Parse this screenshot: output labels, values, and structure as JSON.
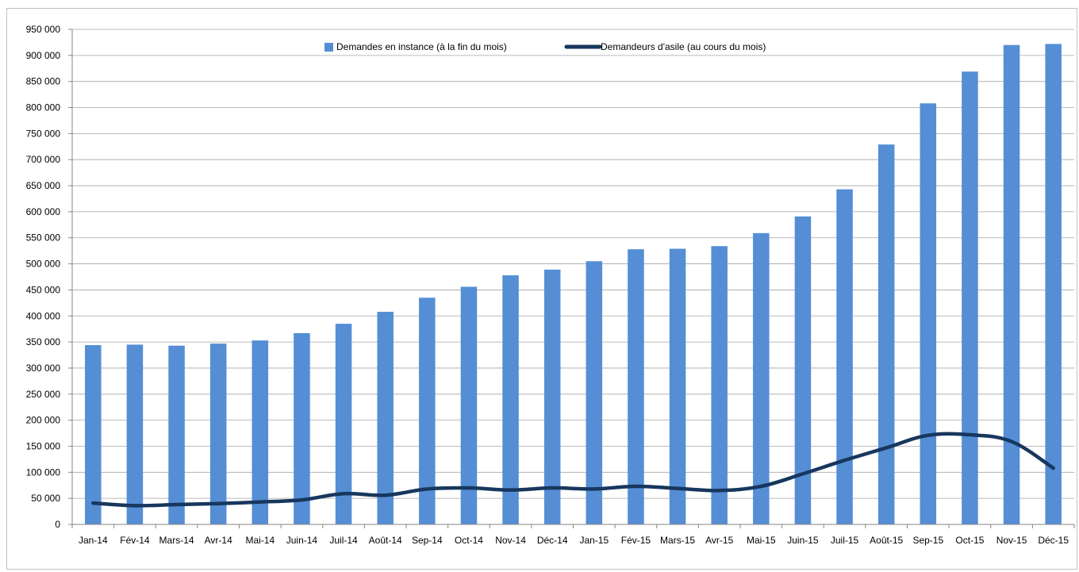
{
  "chart_data": {
    "type": "bar",
    "title": "",
    "xlabel": "",
    "ylabel": "",
    "ylim": [
      0,
      950000
    ],
    "grid": true,
    "legend_position": "top",
    "categories": [
      "Jan-14",
      "Fév-14",
      "Mars-14",
      "Avr-14",
      "Mai-14",
      "Juin-14",
      "Juil-14",
      "Août-14",
      "Sep-14",
      "Oct-14",
      "Nov-14",
      "Déc-14",
      "Jan-15",
      "Fév-15",
      "Mars-15",
      "Avr-15",
      "Mai-15",
      "Juin-15",
      "Juil-15",
      "Août-15",
      "Sep-15",
      "Oct-15",
      "Nov-15",
      "Déc-15"
    ],
    "y_ticks": [
      "0",
      "50 000",
      "100 000",
      "150 000",
      "200 000",
      "250 000",
      "300 000",
      "350 000",
      "400 000",
      "450 000",
      "500 000",
      "550 000",
      "600 000",
      "650 000",
      "700 000",
      "750 000",
      "800 000",
      "850 000",
      "900 000",
      "950 000"
    ],
    "series": [
      {
        "name": "Demandes en instance (à la fin du mois)",
        "type": "bar",
        "color": "#558ed5",
        "values": [
          344000,
          345000,
          343000,
          347000,
          353000,
          367000,
          385000,
          408000,
          435000,
          456000,
          478000,
          489000,
          505000,
          528000,
          529000,
          534000,
          559000,
          591000,
          643000,
          729000,
          808000,
          869000,
          920000,
          922000
        ]
      },
      {
        "name": "Demandeurs d'asile (au cours du mois)",
        "type": "line",
        "color": "#17375e",
        "values": [
          41000,
          36000,
          38000,
          40000,
          43000,
          47000,
          59000,
          56000,
          68000,
          70000,
          66000,
          70000,
          68000,
          73000,
          69000,
          65000,
          73000,
          97000,
          123000,
          147000,
          171000,
          172000,
          159000,
          108000
        ]
      }
    ]
  }
}
